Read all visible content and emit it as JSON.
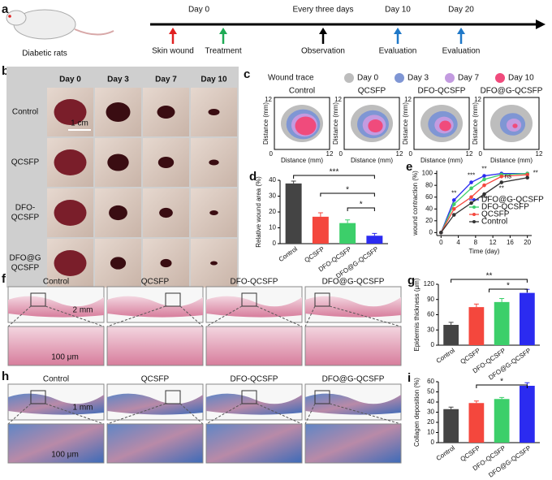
{
  "panel_labels": [
    "a",
    "b",
    "c",
    "f",
    "h"
  ],
  "timeline": {
    "subject": "Diabetic rats",
    "top_labels": [
      "Day 0",
      "Every three days",
      "Day 10",
      "Day 20"
    ],
    "steps": [
      "Skin wound",
      "Treatment",
      "Observation",
      "Evaluation",
      "Evaluation"
    ]
  },
  "photos": {
    "columns": [
      "Day 0",
      "Day 3",
      "Day 7",
      "Day 10"
    ],
    "rows": [
      [
        "Control"
      ],
      [
        "QCSFP"
      ],
      [
        "DFO-",
        "QCSFP"
      ],
      [
        "DFO@G",
        "QCSFP"
      ]
    ],
    "scale_bar": "1 cm"
  },
  "wound_trace": {
    "legend_title": "Wound trace",
    "legend": [
      "Day 0",
      "Day 3",
      "Day 7",
      "Day 10"
    ],
    "colors": [
      "#bdbdbd",
      "#7f96d4",
      "#c39be0",
      "#f04b7c"
    ],
    "plots": [
      "Control",
      "QCSFP",
      "DFO-QCSFP",
      "DFO@G-QCSFP"
    ],
    "axis_label": "Distance (mm)",
    "ticks": [
      0,
      12
    ]
  },
  "histology_f": {
    "titles": [
      "Control",
      "QCSFP",
      "DFO-QCSFP",
      "DFO@G-QCSFP"
    ],
    "scale_bars": [
      "2 mm",
      "100 μm"
    ]
  },
  "histology_h": {
    "titles": [
      "Control",
      "QCSFP",
      "DFO-QCSFP",
      "DFO@G-QCSFP"
    ],
    "scale_bars": [
      "1 mm",
      "100 μm"
    ]
  },
  "chart_data": [
    {
      "type": "bar",
      "panel": "d",
      "ylabel": "Relative wound area (%)",
      "categories": [
        "Control",
        "QCSFP",
        "DFO-QCSFP",
        "DFO@G-QCSFP"
      ],
      "values": [
        38,
        17,
        13,
        5
      ],
      "errors": [
        1.5,
        2.5,
        2,
        1.5
      ],
      "colors": [
        "#444444",
        "#f4473d",
        "#3ccf6a",
        "#2b2bf0"
      ],
      "ylim": [
        0,
        40
      ],
      "yticks": [
        0,
        10,
        20,
        30,
        40
      ],
      "annotations": [
        "***",
        "*",
        "*"
      ]
    },
    {
      "type": "line",
      "panel": "e",
      "ylabel": "wound contraction (%)",
      "xlabel": "Time (day)",
      "x": [
        0,
        3,
        7,
        10,
        14,
        20
      ],
      "series": [
        {
          "name": "DFO@G-QCSFP",
          "color": "#2b2bf0",
          "values": [
            0,
            55,
            85,
            96,
            100,
            100
          ]
        },
        {
          "name": "DFO-QCSFP",
          "color": "#3ccf6a",
          "values": [
            0,
            48,
            75,
            90,
            98,
            100
          ]
        },
        {
          "name": "QCSFP",
          "color": "#f4473d",
          "values": [
            0,
            40,
            60,
            80,
            95,
            98
          ]
        },
        {
          "name": "Control",
          "color": "#333333",
          "values": [
            0,
            30,
            50,
            65,
            85,
            93
          ]
        }
      ],
      "xlim": [
        -1,
        21
      ],
      "xticks": [
        0,
        4,
        8,
        12,
        16,
        20
      ],
      "ylim": [
        -5,
        105
      ],
      "yticks": [
        0,
        20,
        40,
        60,
        80,
        100
      ],
      "annotations": [
        "**",
        "***",
        "**",
        "***",
        "**",
        "ns",
        "**"
      ]
    },
    {
      "type": "bar",
      "panel": "g",
      "ylabel": "Epidermis thickness (μm)",
      "categories": [
        "Control",
        "QCSFP",
        "DFO-QCSFP",
        "DFO@G-QCSFP"
      ],
      "values": [
        40,
        75,
        85,
        103
      ],
      "errors": [
        5,
        6,
        7,
        7
      ],
      "colors": [
        "#444444",
        "#f4473d",
        "#3ccf6a",
        "#2b2bf0"
      ],
      "ylim": [
        0,
        120
      ],
      "yticks": [
        0,
        30,
        60,
        90,
        120
      ],
      "annotations": [
        "**",
        "*"
      ]
    },
    {
      "type": "bar",
      "panel": "i",
      "ylabel": "Collagen deposition (%)",
      "categories": [
        "Control",
        "QCSFP",
        "DFO-QCSFP",
        "DFO@G-QCSFP"
      ],
      "values": [
        33,
        39,
        43,
        56
      ],
      "errors": [
        2,
        2,
        1.5,
        3
      ],
      "colors": [
        "#444444",
        "#f4473d",
        "#3ccf6a",
        "#2b2bf0"
      ],
      "ylim": [
        0,
        60
      ],
      "yticks": [
        0,
        10,
        20,
        30,
        40,
        50,
        60
      ],
      "annotations": [
        "*"
      ]
    }
  ]
}
